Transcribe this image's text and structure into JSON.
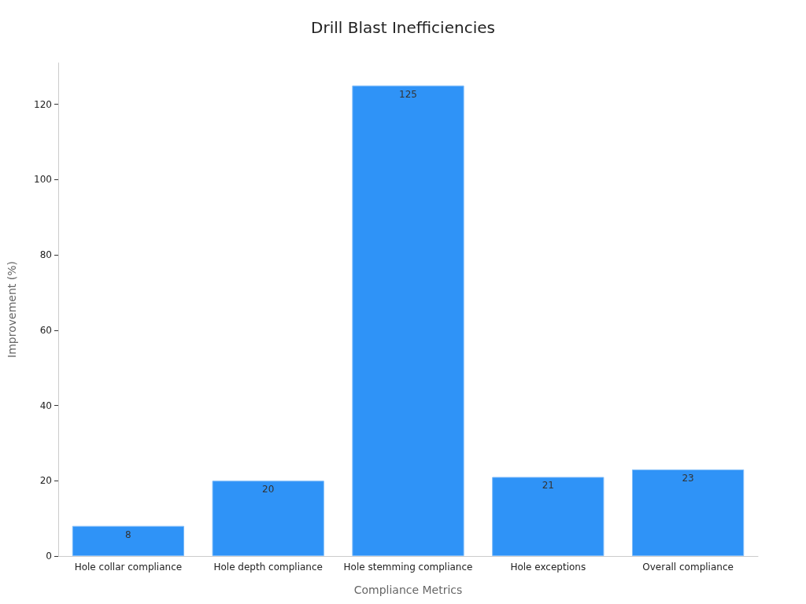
{
  "chart_data": {
    "type": "bar",
    "title": "Drill Blast Inefficiencies",
    "xlabel": "Compliance Metrics",
    "ylabel": "Improvement (%)",
    "categories": [
      "Hole collar compliance",
      "Hole depth compliance",
      "Hole stemming compliance",
      "Hole exceptions",
      "Overall compliance"
    ],
    "values": [
      8,
      20,
      125,
      21,
      23
    ],
    "color": "#2f93f7",
    "ylim": [
      0,
      131
    ],
    "yticks": [
      0,
      20,
      40,
      60,
      80,
      100,
      120
    ],
    "grid": false,
    "data_labels": true
  }
}
